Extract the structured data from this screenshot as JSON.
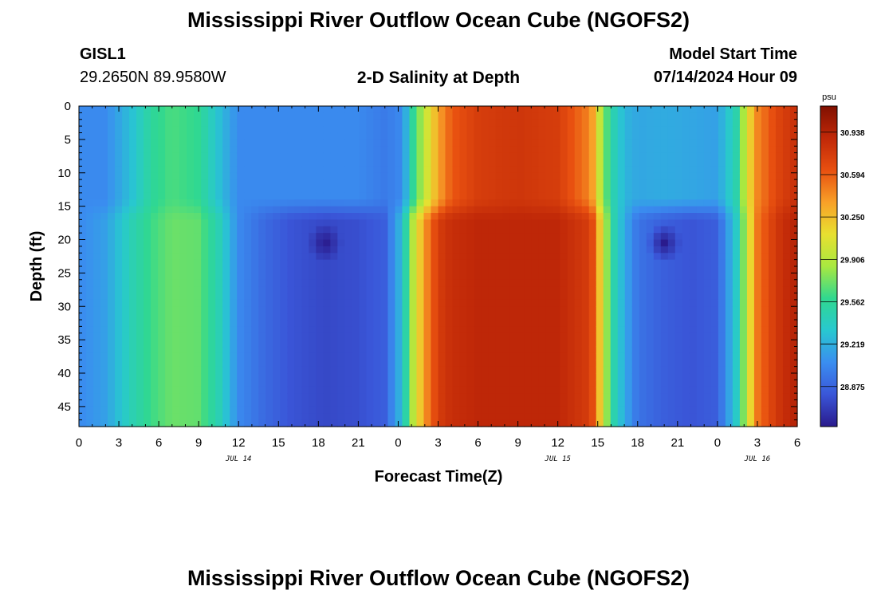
{
  "header": {
    "title": "Mississippi River Outflow Ocean Cube (NGOFS2)",
    "station": "GISL1",
    "coords": "29.2650N  89.9580W",
    "subtitle": "2-D Salinity at Depth",
    "start_label": "Model Start Time",
    "start_value": "07/14/2024 Hour 09"
  },
  "footer": {
    "title": "Mississippi River Outflow Ocean Cube (NGOFS2)"
  },
  "chart_data": {
    "type": "heatmap",
    "xlabel": "Forecast Time(Z)",
    "ylabel": "Depth (ft)",
    "x_tick_labels": [
      "0",
      "3",
      "6",
      "9",
      "12",
      "15",
      "18",
      "21",
      "0",
      "3",
      "6",
      "9",
      "12",
      "15",
      "18",
      "21",
      "0",
      "3",
      "6"
    ],
    "x_range_hours": [
      0,
      54
    ],
    "date_labels": [
      {
        "label": "JUL 14",
        "hour": 12
      },
      {
        "label": "JUL 15",
        "hour": 36
      },
      {
        "label": "JUL 16",
        "hour": 51
      }
    ],
    "y_ticks": [
      0,
      5,
      10,
      15,
      20,
      25,
      30,
      35,
      40,
      45
    ],
    "y_range": [
      0,
      48
    ],
    "colorbar": {
      "unit": "psu",
      "ticks": [
        30.938,
        30.594,
        30.25,
        29.906,
        29.562,
        29.219,
        28.875
      ],
      "range": [
        28.55,
        31.15
      ],
      "colors": [
        "#2a1a8c",
        "#3a56d8",
        "#3a8ef0",
        "#28c8d0",
        "#30d890",
        "#a8e840",
        "#e8e030",
        "#f8a028",
        "#e85010",
        "#c02808",
        "#801000"
      ]
    },
    "salinity_model": {
      "time_hours": [
        0,
        2,
        4,
        5.5,
        7,
        9,
        10.5,
        12,
        14,
        16,
        18.5,
        21,
        23,
        24.3,
        25.1,
        26,
        27,
        28,
        30,
        33,
        36,
        38.5,
        39.3,
        40,
        41,
        42,
        44,
        46,
        48,
        49.5,
        50.2,
        51,
        52.5,
        54
      ],
      "surface": [
        29.05,
        29.05,
        29.3,
        29.55,
        29.65,
        29.58,
        29.3,
        29.05,
        29.05,
        29.05,
        29.05,
        29.05,
        28.98,
        29.05,
        29.55,
        29.95,
        30.35,
        30.6,
        30.75,
        30.8,
        30.75,
        30.45,
        29.85,
        29.5,
        29.25,
        29.18,
        29.2,
        29.18,
        29.15,
        29.5,
        30.05,
        30.45,
        30.7,
        30.85
      ],
      "deep": [
        29.05,
        29.15,
        29.45,
        29.62,
        29.72,
        29.7,
        29.45,
        29.05,
        28.9,
        28.8,
        28.75,
        28.78,
        28.85,
        29.3,
        29.9,
        30.4,
        30.75,
        30.85,
        30.9,
        30.9,
        30.9,
        30.75,
        30.1,
        29.55,
        29.2,
        28.95,
        28.85,
        28.8,
        28.85,
        29.4,
        29.95,
        30.5,
        30.8,
        30.95
      ],
      "layer_depth_ft": 16,
      "minima": [
        {
          "hour": 18.5,
          "depth_ft": 20.5,
          "value": 28.55
        },
        {
          "hour": 44,
          "depth_ft": 20.5,
          "value": 28.55
        }
      ]
    }
  }
}
